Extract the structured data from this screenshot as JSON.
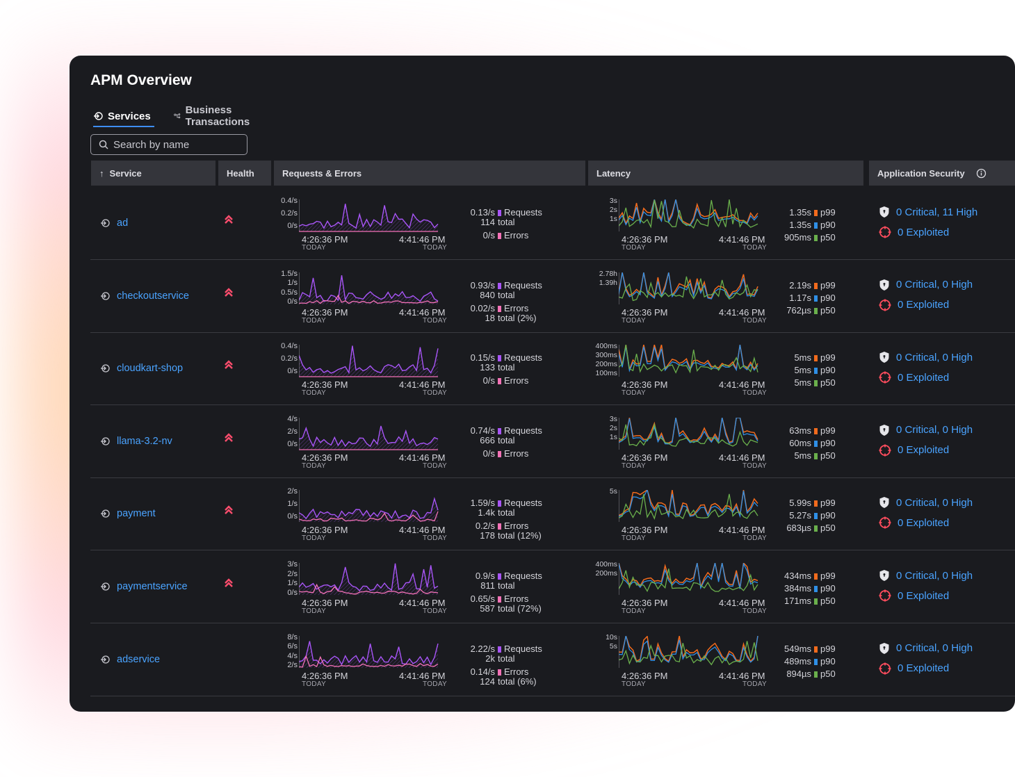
{
  "app": {
    "title": "APM Overview",
    "tabs": [
      {
        "label": "Services",
        "icon": "service-arrow-icon"
      },
      {
        "label": "Business Transactions",
        "icon": "branch-icon"
      }
    ],
    "search_placeholder": "Search by name"
  },
  "table": {
    "headers": {
      "service": "Service",
      "health": "Health",
      "requests": "Requests & Errors",
      "latency": "Latency",
      "security": "Application Security"
    },
    "time_start": "4:26:36 PM",
    "time_end": "4:41:46 PM",
    "day": "TODAY",
    "rows": [
      {
        "service": "ad",
        "health": "warning",
        "req_axis": [
          "0.4/s",
          "0.2/s",
          "0/s"
        ],
        "req_rate": "0.13/s",
        "req_label": "Requests",
        "req_total": "114",
        "total_label": "total",
        "err_rate": "0/s",
        "err_label": "Errors",
        "err_total": "",
        "lat_axis": [
          "3s",
          "2s",
          "1s"
        ],
        "p99": "1.35s",
        "p90": "1.35s",
        "p50": "905ms",
        "vuln": "0 Critical, 11 High",
        "exploited": "0 Exploited"
      },
      {
        "service": "checkoutservice",
        "health": "warning",
        "req_axis": [
          "1.5/s",
          "1/s",
          "0.5/s",
          "0/s"
        ],
        "req_rate": "0.93/s",
        "req_label": "Requests",
        "req_total": "840",
        "total_label": "total",
        "err_rate": "0.02/s",
        "err_label": "Errors",
        "err_total": "18",
        "err_total_label": "total (2%)",
        "lat_axis": [
          "2.78h",
          "1.39h"
        ],
        "p99": "2.19s",
        "p90": "1.17s",
        "p50": "762µs",
        "vuln": "0 Critical, 0 High",
        "exploited": "0 Exploited"
      },
      {
        "service": "cloudkart-shop",
        "health": "warning",
        "req_axis": [
          "0.4/s",
          "0.2/s",
          "0/s"
        ],
        "req_rate": "0.15/s",
        "req_label": "Requests",
        "req_total": "133",
        "total_label": "total",
        "err_rate": "0/s",
        "err_label": "Errors",
        "err_total": "",
        "lat_axis": [
          "400ms",
          "300ms",
          "200ms",
          "100ms"
        ],
        "p99": "5ms",
        "p90": "5ms",
        "p50": "5ms",
        "vuln": "0 Critical, 0 High",
        "exploited": "0 Exploited"
      },
      {
        "service": "llama-3.2-nv",
        "health": "warning",
        "req_axis": [
          "4/s",
          "2/s",
          "0/s"
        ],
        "req_rate": "0.74/s",
        "req_label": "Requests",
        "req_total": "666",
        "total_label": "total",
        "err_rate": "0/s",
        "err_label": "Errors",
        "err_total": "",
        "lat_axis": [
          "3s",
          "2s",
          "1s"
        ],
        "p99": "63ms",
        "p90": "60ms",
        "p50": "5ms",
        "vuln": "0 Critical, 0 High",
        "exploited": "0 Exploited"
      },
      {
        "service": "payment",
        "health": "warning",
        "req_axis": [
          "2/s",
          "1/s",
          "0/s"
        ],
        "req_rate": "1.59/s",
        "req_label": "Requests",
        "req_total": "1.4k",
        "total_label": "total",
        "err_rate": "0.2/s",
        "err_label": "Errors",
        "err_total": "178",
        "err_total_label": "total (12%)",
        "lat_axis": [
          "5s"
        ],
        "p99": "5.99s",
        "p90": "5.27s",
        "p50": "683µs",
        "vuln": "0 Critical, 0 High",
        "exploited": "0 Exploited"
      },
      {
        "service": "paymentservice",
        "health": "warning",
        "req_axis": [
          "3/s",
          "2/s",
          "1/s",
          "0/s"
        ],
        "req_rate": "0.9/s",
        "req_label": "Requests",
        "req_total": "811",
        "total_label": "total",
        "err_rate": "0.65/s",
        "err_label": "Errors",
        "err_total": "587",
        "err_total_label": "total (72%)",
        "lat_axis": [
          "400ms",
          "200ms"
        ],
        "p99": "434ms",
        "p90": "384ms",
        "p50": "171ms",
        "vuln": "0 Critical, 0 High",
        "exploited": "0 Exploited"
      },
      {
        "service": "adservice",
        "health": "",
        "req_axis": [
          "8/s",
          "6/s",
          "4/s",
          "2/s"
        ],
        "req_rate": "2.22/s",
        "req_label": "Requests",
        "req_total": "2k",
        "total_label": "total",
        "err_rate": "0.14/s",
        "err_label": "Errors",
        "err_total": "124",
        "err_total_label": "total (6%)",
        "lat_axis": [
          "10s",
          "5s"
        ],
        "p99": "549ms",
        "p90": "489ms",
        "p50": "894µs",
        "vuln": "0 Critical, 0 High",
        "exploited": "0 Exploited"
      }
    ]
  },
  "percentile_labels": {
    "p99": "p99",
    "p90": "p90",
    "p50": "p50"
  },
  "colors": {
    "requests": "#a855f7",
    "errors": "#f472b6",
    "p99": "#f26b1d",
    "p90": "#2f8fe6",
    "p50": "#6ab04c",
    "link": "#4aa3ff",
    "health": "#ff4d6d"
  }
}
